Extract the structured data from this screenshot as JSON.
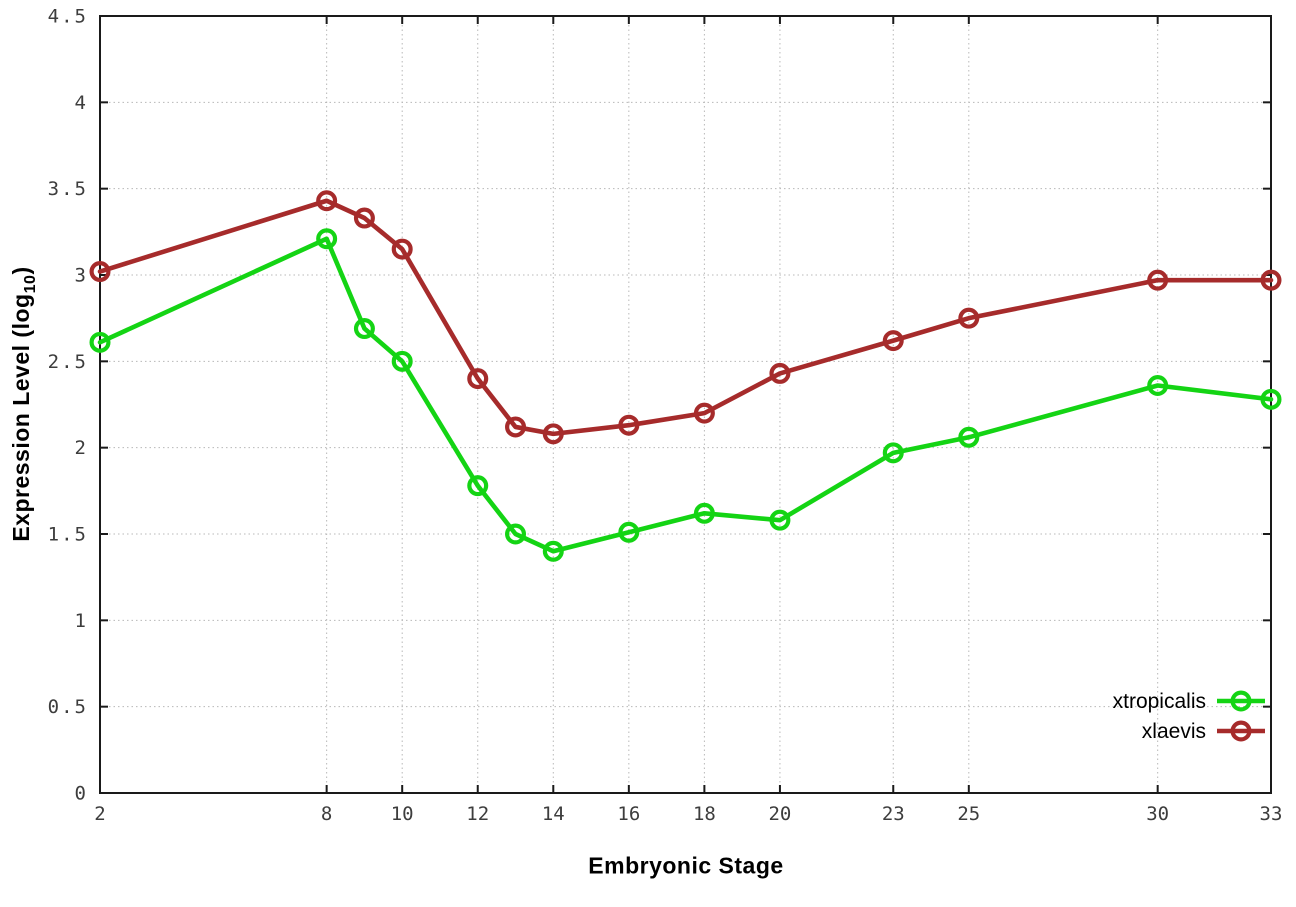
{
  "chart_data": {
    "type": "line",
    "title": "",
    "xlabel": "Embryonic Stage",
    "ylabel": "Expression Level (log10)",
    "ylabel_parts": {
      "prefix": "Expression Level (log",
      "subscript": "10",
      "suffix": ")"
    },
    "x": [
      2,
      8,
      9,
      10,
      12,
      13,
      14,
      16,
      18,
      20,
      23,
      25,
      30,
      33
    ],
    "series": [
      {
        "name": "xtropicalis",
        "color": "#14d414",
        "values": [
          2.61,
          3.21,
          2.69,
          2.5,
          1.78,
          1.5,
          1.4,
          1.51,
          1.62,
          1.58,
          1.97,
          2.06,
          2.36,
          2.28
        ]
      },
      {
        "name": "xlaevis",
        "color": "#a62b2b",
        "values": [
          3.02,
          3.43,
          3.33,
          3.15,
          2.4,
          2.12,
          2.08,
          2.13,
          2.2,
          2.43,
          2.62,
          2.75,
          2.97,
          2.97
        ]
      }
    ],
    "xlim": [
      2,
      33
    ],
    "ylim": [
      0,
      4.5
    ],
    "x_ticks": [
      2,
      8,
      10,
      12,
      14,
      16,
      18,
      20,
      23,
      25,
      30,
      33
    ],
    "x_tick_labels": [
      "2",
      "8",
      "10",
      "12",
      "14",
      "16",
      "18",
      "20",
      "23",
      "25",
      "30",
      "33"
    ],
    "y_ticks": [
      0,
      0.5,
      1,
      1.5,
      2,
      2.5,
      3,
      3.5,
      4,
      4.5
    ],
    "y_tick_labels": [
      "0",
      "0.5",
      "1",
      "1.5",
      "2",
      "2.5",
      "3",
      "3.5",
      "4",
      "4.5"
    ],
    "grid": true,
    "legend_position": "bottom-right",
    "marker": "open-circle"
  },
  "style_colors": {
    "background": "#ffffff",
    "border": "#1a1a1a",
    "gridline": "#b8b8b8",
    "tick_label": "#3d3d3d",
    "axis_label": "#000000",
    "legend_text": "#000000"
  }
}
